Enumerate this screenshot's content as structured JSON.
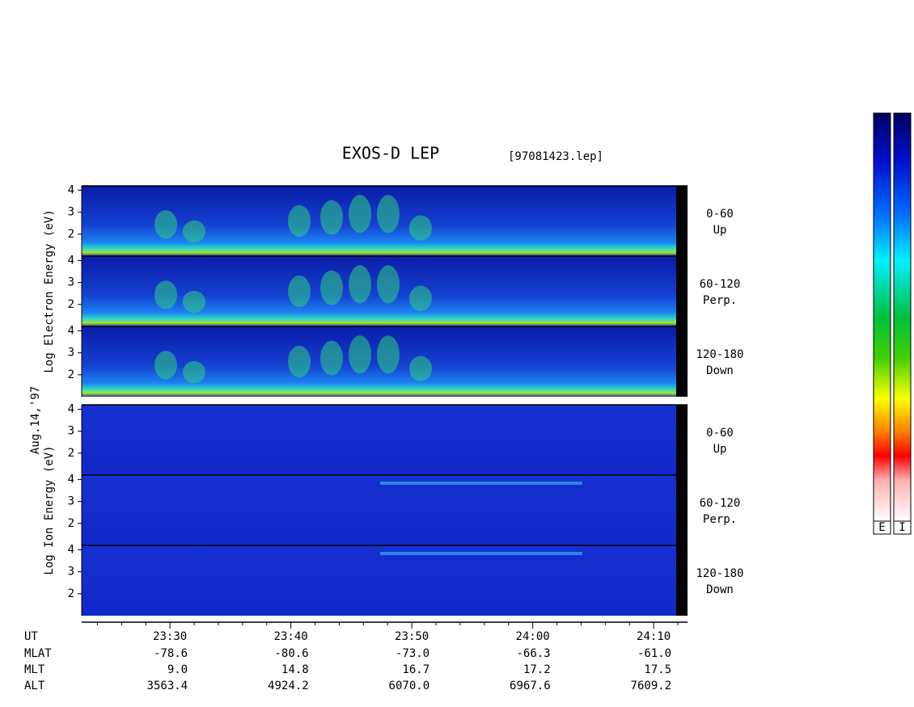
{
  "chart_data": {
    "type": "spectrogram",
    "title": "EXOS-D LEP",
    "subtitle": "[97081423.lep]",
    "date_label": "Aug.14,'97",
    "xlim": [
      22.7,
      72.8
    ],
    "xticks": [
      {
        "value": 30,
        "label": "23:30"
      },
      {
        "value": 40,
        "label": "23:40"
      },
      {
        "value": 50,
        "label": "23:50"
      },
      {
        "value": 60,
        "label": "24:00"
      },
      {
        "value": 70,
        "label": "24:10"
      }
    ],
    "minor_xticks": [
      24,
      26,
      28,
      32,
      34,
      36,
      38,
      42,
      44,
      46,
      48,
      52,
      54,
      56,
      58,
      62,
      64,
      66,
      68,
      72
    ],
    "ylim": [
      1,
      4.2
    ],
    "yticks": [
      2,
      3,
      4
    ],
    "groups": [
      {
        "ylabel": "Log  Electron  Energy (eV)",
        "panels": [
          {
            "label": [
              "0-60",
              "Up"
            ]
          },
          {
            "label": [
              "60-120",
              "Perp."
            ]
          },
          {
            "label": [
              "120-180",
              "Down"
            ]
          }
        ]
      },
      {
        "ylabel": "Log  Ion  Energy (eV)",
        "panels": [
          {
            "label": [
              "0-60",
              "Up"
            ]
          },
          {
            "label": [
              "60-120",
              "Perp."
            ]
          },
          {
            "label": [
              "120-180",
              "Down"
            ]
          }
        ]
      }
    ],
    "colorbar_labels": [
      "E",
      "I"
    ],
    "table": {
      "ut_label": "UT",
      "rows": [
        {
          "name": "MLAT",
          "values": [
            "-78.6",
            "-80.6",
            "-73.0",
            "-66.3",
            "-61.0"
          ]
        },
        {
          "name": "MLT",
          "values": [
            "9.0",
            "14.8",
            "16.7",
            "17.2",
            "17.5"
          ]
        },
        {
          "name": "ALT",
          "values": [
            "3563.4",
            "4924.2",
            "6070.0",
            "6967.6",
            "7609.2"
          ]
        }
      ]
    }
  }
}
